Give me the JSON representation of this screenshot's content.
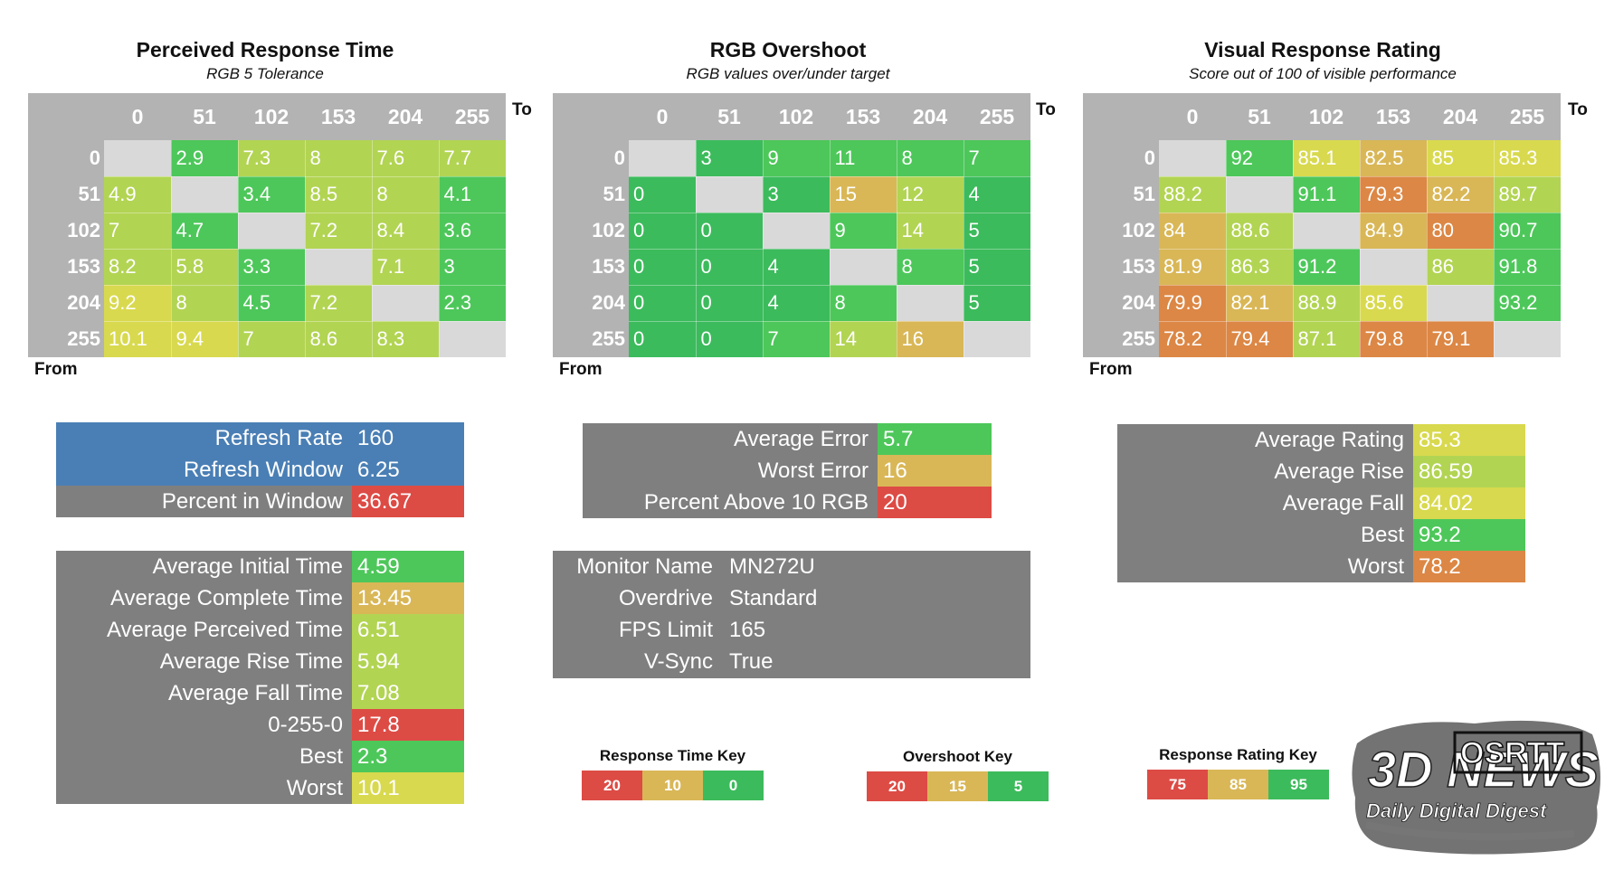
{
  "colors": {
    "header_gray": "#b3b3b3",
    "label_gray": "#7f7f7f",
    "blue": "#4a7fb5",
    "diag_empty": "#d9d9d9",
    "red": "#dd4b45",
    "orange": "#dc8745",
    "amber": "#d9b757",
    "yellow": "#d8d94e",
    "yellowgreen": "#b2d453",
    "green": "#4dc75a",
    "deepgreen": "#3cbb5c"
  },
  "chart_data": [
    {
      "type": "heatmap",
      "title": "Perceived Response Time",
      "subtitle": "RGB 5 Tolerance",
      "x_label": "To",
      "y_label": "From",
      "columns": [
        "0",
        "51",
        "102",
        "153",
        "204",
        "255"
      ],
      "rows": [
        "0",
        "51",
        "102",
        "153",
        "204",
        "255"
      ],
      "values": [
        [
          "",
          "2.9",
          "7.3",
          "8",
          "7.6",
          "7.7"
        ],
        [
          "4.9",
          "",
          "3.4",
          "8.5",
          "8",
          "4.1"
        ],
        [
          "7",
          "4.7",
          "",
          "7.2",
          "8.4",
          "3.6"
        ],
        [
          "8.2",
          "5.8",
          "3.3",
          "",
          "7.1",
          "3"
        ],
        [
          "9.2",
          "8",
          "4.5",
          "7.2",
          "",
          "2.3"
        ],
        [
          "10.1",
          "9.4",
          "7",
          "8.6",
          "8.3",
          ""
        ]
      ],
      "colors": [
        [
          "",
          "green",
          "yellowgreen",
          "yellowgreen",
          "yellowgreen",
          "yellowgreen"
        ],
        [
          "yellowgreen",
          "",
          "green",
          "yellowgreen",
          "yellowgreen",
          "green"
        ],
        [
          "yellowgreen",
          "green",
          "",
          "yellowgreen",
          "yellowgreen",
          "green"
        ],
        [
          "yellowgreen",
          "yellowgreen",
          "green",
          "",
          "yellowgreen",
          "green"
        ],
        [
          "yellow",
          "yellowgreen",
          "green",
          "yellowgreen",
          "",
          "green"
        ],
        [
          "yellow",
          "yellow",
          "yellowgreen",
          "yellowgreen",
          "yellowgreen",
          ""
        ]
      ]
    },
    {
      "type": "heatmap",
      "title": "RGB Overshoot",
      "subtitle": "RGB values over/under target",
      "x_label": "To",
      "y_label": "From",
      "columns": [
        "0",
        "51",
        "102",
        "153",
        "204",
        "255"
      ],
      "rows": [
        "0",
        "51",
        "102",
        "153",
        "204",
        "255"
      ],
      "values": [
        [
          "",
          "3",
          "9",
          "11",
          "8",
          "7"
        ],
        [
          "0",
          "",
          "3",
          "15",
          "12",
          "4"
        ],
        [
          "0",
          "0",
          "",
          "9",
          "14",
          "5"
        ],
        [
          "0",
          "0",
          "4",
          "",
          "8",
          "5"
        ],
        [
          "0",
          "0",
          "4",
          "8",
          "",
          "5"
        ],
        [
          "0",
          "0",
          "7",
          "14",
          "16",
          ""
        ]
      ],
      "colors": [
        [
          "",
          "deepgreen",
          "green",
          "green",
          "green",
          "green"
        ],
        [
          "deepgreen",
          "",
          "deepgreen",
          "amber",
          "yellowgreen",
          "deepgreen"
        ],
        [
          "deepgreen",
          "deepgreen",
          "",
          "green",
          "yellowgreen",
          "deepgreen"
        ],
        [
          "deepgreen",
          "deepgreen",
          "deepgreen",
          "",
          "green",
          "deepgreen"
        ],
        [
          "deepgreen",
          "deepgreen",
          "deepgreen",
          "green",
          "",
          "deepgreen"
        ],
        [
          "deepgreen",
          "deepgreen",
          "green",
          "yellowgreen",
          "amber",
          ""
        ]
      ]
    },
    {
      "type": "heatmap",
      "title": "Visual Response Rating",
      "subtitle": "Score out of 100 of visible performance",
      "x_label": "To",
      "y_label": "From",
      "columns": [
        "0",
        "51",
        "102",
        "153",
        "204",
        "255"
      ],
      "rows": [
        "0",
        "51",
        "102",
        "153",
        "204",
        "255"
      ],
      "values": [
        [
          "",
          "92",
          "85.1",
          "82.5",
          "85",
          "85.3"
        ],
        [
          "88.2",
          "",
          "91.1",
          "79.3",
          "82.2",
          "89.7"
        ],
        [
          "84",
          "88.6",
          "",
          "84.9",
          "80",
          "90.7"
        ],
        [
          "81.9",
          "86.3",
          "91.2",
          "",
          "86",
          "91.8"
        ],
        [
          "79.9",
          "82.1",
          "88.9",
          "85.6",
          "",
          "93.2"
        ],
        [
          "78.2",
          "79.4",
          "87.1",
          "79.8",
          "79.1",
          ""
        ]
      ],
      "colors": [
        [
          "",
          "green",
          "yellow",
          "amber",
          "yellow",
          "yellow"
        ],
        [
          "yellowgreen",
          "",
          "green",
          "orange",
          "amber",
          "yellowgreen"
        ],
        [
          "amber",
          "yellowgreen",
          "",
          "amber",
          "orange",
          "green"
        ],
        [
          "amber",
          "yellowgreen",
          "green",
          "",
          "yellowgreen",
          "green"
        ],
        [
          "orange",
          "amber",
          "yellowgreen",
          "yellow",
          "",
          "green"
        ],
        [
          "orange",
          "orange",
          "yellowgreen",
          "orange",
          "orange",
          ""
        ]
      ]
    }
  ],
  "refresh_box": {
    "rows": [
      {
        "label": "Refresh Rate",
        "value": "160",
        "color": "blue"
      },
      {
        "label": "Refresh Window",
        "value": "6.25",
        "color": "blue"
      },
      {
        "label": "Percent in Window",
        "value": "36.67",
        "color": "red"
      }
    ]
  },
  "time_box": {
    "rows": [
      {
        "label": "Average Initial Time",
        "value": "4.59",
        "color": "green"
      },
      {
        "label": "Average Complete Time",
        "value": "13.45",
        "color": "amber"
      },
      {
        "label": "Average Perceived Time",
        "value": "6.51",
        "color": "yellowgreen"
      },
      {
        "label": "Average Rise Time",
        "value": "5.94",
        "color": "yellowgreen"
      },
      {
        "label": "Average Fall Time",
        "value": "7.08",
        "color": "yellowgreen"
      },
      {
        "label": "0-255-0",
        "value": "17.8",
        "color": "red"
      },
      {
        "label": "Best",
        "value": "2.3",
        "color": "green"
      },
      {
        "label": "Worst",
        "value": "10.1",
        "color": "yellow"
      }
    ]
  },
  "error_box": {
    "rows": [
      {
        "label": "Average Error",
        "value": "5.7",
        "color": "green"
      },
      {
        "label": "Worst Error",
        "value": "16",
        "color": "amber"
      },
      {
        "label": "Percent Above 10 RGB",
        "value": "20",
        "color": "red"
      }
    ]
  },
  "monitor_box": {
    "rows": [
      {
        "label": "Monitor Name",
        "value": "MN272U"
      },
      {
        "label": "Overdrive",
        "value": "Standard"
      },
      {
        "label": "FPS Limit",
        "value": "165"
      },
      {
        "label": "V-Sync",
        "value": "True"
      }
    ]
  },
  "rating_box": {
    "rows": [
      {
        "label": "Average Rating",
        "value": "85.3",
        "color": "yellow"
      },
      {
        "label": "Average Rise",
        "value": "86.59",
        "color": "yellowgreen"
      },
      {
        "label": "Average Fall",
        "value": "84.02",
        "color": "yellow"
      },
      {
        "label": "Best",
        "value": "93.2",
        "color": "green"
      },
      {
        "label": "Worst",
        "value": "78.2",
        "color": "orange"
      }
    ]
  },
  "keys": [
    {
      "title": "Response Time Key",
      "cells": [
        {
          "label": "20",
          "color": "red"
        },
        {
          "label": "10",
          "color": "amber"
        },
        {
          "label": "0",
          "color": "deepgreen"
        }
      ]
    },
    {
      "title": "Overshoot Key",
      "cells": [
        {
          "label": "20",
          "color": "red"
        },
        {
          "label": "15",
          "color": "amber"
        },
        {
          "label": "5",
          "color": "deepgreen"
        }
      ]
    },
    {
      "title": "Response Rating Key",
      "cells": [
        {
          "label": "75",
          "color": "red"
        },
        {
          "label": "85",
          "color": "amber"
        },
        {
          "label": "95",
          "color": "deepgreen"
        }
      ]
    }
  ],
  "watermark": {
    "brand": "3D NEWS",
    "tagline": "Daily Digital Digest",
    "tool": "OSRTT"
  }
}
